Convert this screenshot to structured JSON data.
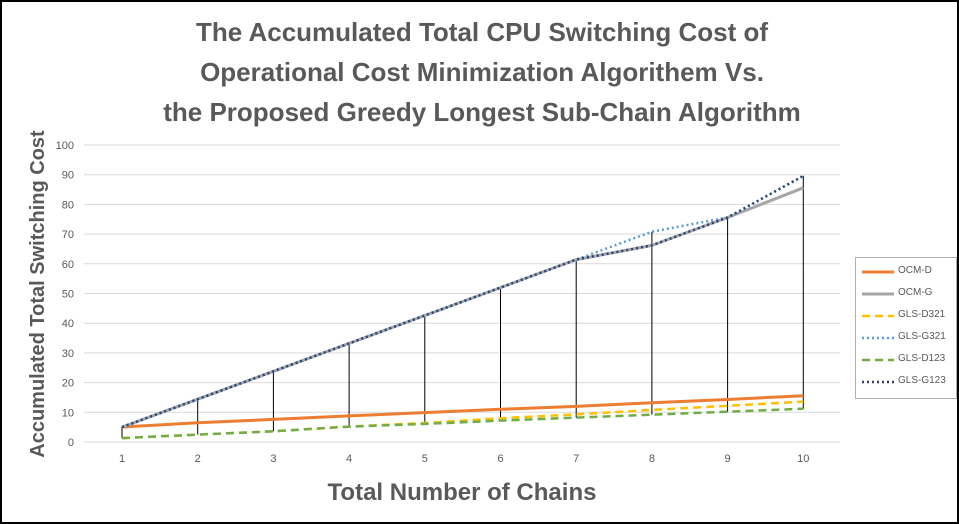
{
  "chart_data": {
    "type": "line",
    "title_lines": [
      "The Accumulated Total CPU Switching Cost of",
      "Operational Cost Minimization Algorithem Vs.",
      "the Proposed Greedy Longest Sub-Chain Algorithm"
    ],
    "xlabel": "Total Number of Chains",
    "ylabel": "Accumulated Total Switching Cost",
    "x": [
      1,
      2,
      3,
      4,
      5,
      6,
      7,
      8,
      9,
      10
    ],
    "x_tick_labels": [
      "1",
      "2",
      "3",
      "4",
      "5",
      "6",
      "7",
      "8",
      "9",
      "10"
    ],
    "ylim": [
      0,
      100
    ],
    "y_tick_labels": [
      "0",
      "10",
      "20",
      "30",
      "40",
      "50",
      "60",
      "70",
      "80",
      "90",
      "100"
    ],
    "grid": true,
    "legend_position": "right",
    "series": [
      {
        "name": "OCM-D",
        "color": "#ed7d31",
        "style": "solid",
        "values": [
          5,
          6.5,
          7.6,
          8.8,
          9.9,
          11,
          12,
          13.2,
          14.3,
          15.6
        ]
      },
      {
        "name": "OCM-G",
        "color": "#a5a5a5",
        "style": "solid",
        "values": [
          5,
          14.4,
          23.8,
          33.2,
          42.6,
          52,
          61.4,
          66.2,
          75.6,
          85.6
        ]
      },
      {
        "name": "GLS-D321",
        "color": "#ffc000",
        "style": "dashed",
        "values": [
          1.3,
          2.5,
          3.6,
          5.2,
          6.4,
          8,
          9.3,
          10.8,
          12.2,
          13.6
        ]
      },
      {
        "name": "GLS-G321",
        "color": "#5b9bd5",
        "style": "dotted",
        "values": [
          5,
          14.4,
          23.8,
          33.2,
          42.6,
          52,
          61.4,
          70.8,
          75.6,
          89.6
        ]
      },
      {
        "name": "GLS-D123",
        "color": "#70ad47",
        "style": "dashed",
        "values": [
          1.3,
          2.5,
          3.6,
          5.2,
          6.1,
          7.2,
          8.2,
          9.2,
          10.2,
          11.2
        ]
      },
      {
        "name": "GLS-G123",
        "color": "#264478",
        "style": "dotted",
        "values": [
          5,
          14.4,
          23.8,
          33.2,
          42.6,
          52,
          61.4,
          66.2,
          75.6,
          89.6
        ]
      }
    ]
  }
}
